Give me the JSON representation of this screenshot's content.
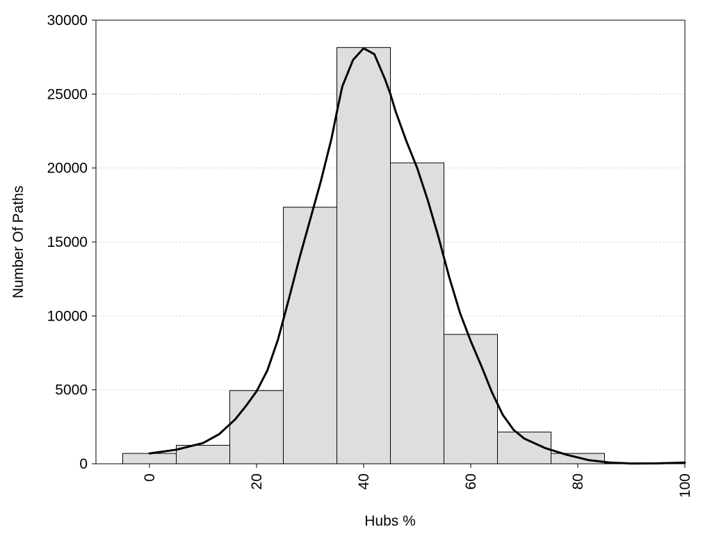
{
  "chart_data": {
    "type": "bar",
    "title": "",
    "xlabel": "Hubs %",
    "ylabel": "Number Of Paths",
    "xlim": [
      -10,
      100
    ],
    "ylim": [
      0,
      30000
    ],
    "x_ticks": [
      "0",
      "20",
      "40",
      "60",
      "80",
      "100"
    ],
    "x_tick_values": [
      0,
      20,
      40,
      60,
      80,
      100
    ],
    "y_ticks": [
      "0",
      "5000",
      "10000",
      "15000",
      "20000",
      "25000",
      "30000"
    ],
    "y_tick_values": [
      0,
      5000,
      10000,
      15000,
      20000,
      25000,
      30000
    ],
    "grid": "horizontal dotted",
    "bar_color": "#dedede",
    "bar_edge_color": "#000000",
    "curve_color": "#000000",
    "bins": [
      {
        "start": -5,
        "end": 5,
        "value": 700
      },
      {
        "start": 5,
        "end": 15,
        "value": 1250
      },
      {
        "start": 15,
        "end": 25,
        "value": 4950
      },
      {
        "start": 25,
        "end": 35,
        "value": 17350
      },
      {
        "start": 35,
        "end": 45,
        "value": 28150
      },
      {
        "start": 45,
        "end": 55,
        "value": 20350
      },
      {
        "start": 55,
        "end": 65,
        "value": 8750
      },
      {
        "start": 65,
        "end": 75,
        "value": 2150
      },
      {
        "start": 75,
        "end": 85,
        "value": 700
      },
      {
        "start": 85,
        "end": 95,
        "value": 50
      },
      {
        "start": 95,
        "end": 105,
        "value": 30
      }
    ],
    "density_curve": {
      "x": [
        0,
        5,
        10,
        13,
        16,
        18,
        20,
        22,
        24,
        26,
        28,
        30,
        32,
        34,
        35,
        36,
        38,
        40,
        42,
        44,
        45,
        46,
        48,
        50,
        52,
        54,
        56,
        58,
        60,
        62,
        64,
        66,
        68,
        70,
        74,
        78,
        82,
        86,
        90,
        95,
        100
      ],
      "y": [
        700,
        950,
        1400,
        2000,
        3000,
        3900,
        4900,
        6300,
        8400,
        11100,
        13900,
        16500,
        19100,
        22000,
        23800,
        25500,
        27300,
        28100,
        27700,
        26000,
        25000,
        23800,
        21800,
        20000,
        17800,
        15300,
        12600,
        10200,
        8300,
        6600,
        4800,
        3300,
        2300,
        1700,
        1050,
        600,
        250,
        80,
        20,
        30,
        80
      ]
    }
  }
}
